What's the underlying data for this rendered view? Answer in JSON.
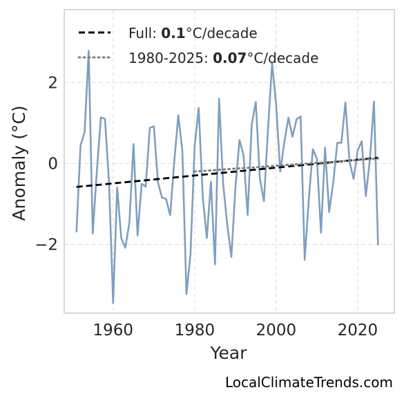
{
  "chart_data": {
    "type": "line",
    "xlabel": "Year",
    "ylabel": "Anomaly (°C)",
    "xlim": [
      1948,
      2029
    ],
    "ylim": [
      -3.7,
      3.8
    ],
    "xticks": [
      1960,
      1980,
      2000,
      2020
    ],
    "yticks": [
      -2,
      0,
      2
    ],
    "ytick_labels": [
      "−2",
      "0",
      "2"
    ],
    "grid": true,
    "legend_position": "top-left",
    "series": [
      {
        "kind": "data",
        "color": "#7f9fbf",
        "x": [
          1951,
          1952,
          1953,
          1954,
          1955,
          1956,
          1957,
          1958,
          1959,
          1960,
          1961,
          1962,
          1963,
          1964,
          1965,
          1966,
          1967,
          1968,
          1969,
          1970,
          1971,
          1972,
          1973,
          1974,
          1975,
          1976,
          1977,
          1978,
          1979,
          1980,
          1981,
          1982,
          1983,
          1984,
          1985,
          1986,
          1987,
          1988,
          1989,
          1990,
          1991,
          1992,
          1993,
          1994,
          1995,
          1996,
          1997,
          1998,
          1999,
          2000,
          2001,
          2002,
          2003,
          2004,
          2005,
          2006,
          2007,
          2008,
          2009,
          2010,
          2011,
          2012,
          2013,
          2014,
          2015,
          2016,
          2017,
          2018,
          2019,
          2020,
          2021,
          2022,
          2023,
          2024,
          2025
        ],
        "y": [
          -1.7,
          0.44,
          0.78,
          2.78,
          -1.73,
          -0.2,
          1.14,
          1.1,
          -0.47,
          -3.45,
          -0.59,
          -1.85,
          -2.08,
          -1.45,
          0.48,
          -1.78,
          -0.5,
          -0.57,
          0.88,
          0.92,
          -0.47,
          -0.84,
          -0.88,
          -1.28,
          0.04,
          1.19,
          0.3,
          -3.23,
          -2.23,
          0.42,
          1.37,
          -0.83,
          -1.84,
          -0.45,
          -2.49,
          1.6,
          -0.5,
          -1.5,
          -2.31,
          -0.6,
          0.58,
          0.2,
          -1.27,
          0.96,
          1.52,
          -0.37,
          -0.93,
          0.85,
          2.48,
          1.44,
          -0.2,
          0.52,
          1.13,
          0.66,
          1.09,
          1.16,
          -2.38,
          -0.9,
          0.35,
          0.11,
          -1.71,
          0.39,
          -1.2,
          -0.48,
          0.51,
          0.51,
          1.51,
          0.05,
          -0.38,
          0.32,
          0.55,
          -0.81,
          0.1,
          1.53,
          -2.02
        ]
      },
      {
        "kind": "trend",
        "name": "Full",
        "color": "#000000",
        "dash": "dashed",
        "x": [
          1951,
          2025
        ],
        "y": [
          -0.58,
          0.14
        ]
      },
      {
        "kind": "trend",
        "name": "1980-2025",
        "color": "#808080",
        "dash": "dotted",
        "x": [
          1980,
          2025
        ],
        "y": [
          -0.2,
          0.12
        ]
      }
    ],
    "legend": [
      {
        "prefix": "Full: ",
        "rate": "0.1",
        "suffix": "°C/decade",
        "color": "#000000",
        "dash": "dashed"
      },
      {
        "prefix": "1980-2025: ",
        "rate": "0.07",
        "suffix": "°C/decade",
        "color": "#808080",
        "dash": "dotted"
      }
    ]
  },
  "watermark": "LocalClimateTrends.com"
}
